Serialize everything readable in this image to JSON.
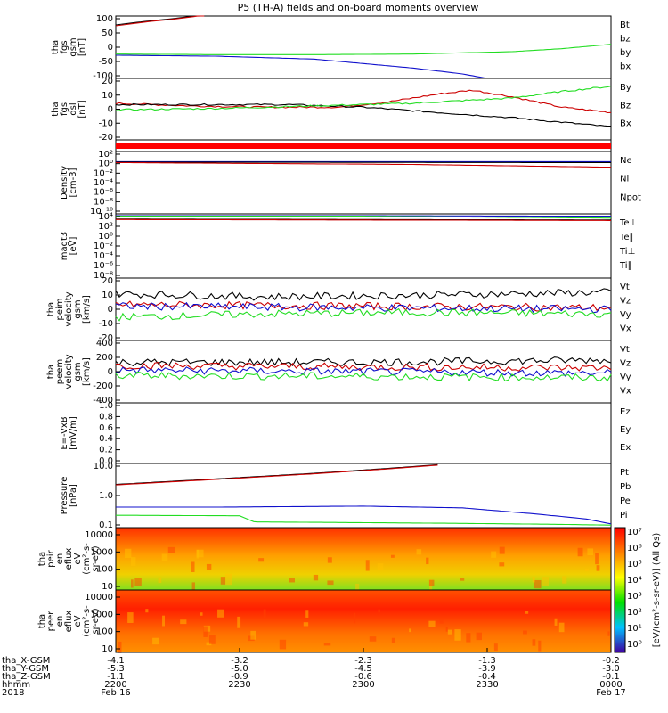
{
  "title": "P5 (TH-A) fields and on-board moments overview",
  "colors": {
    "black": "#000000",
    "red": "#cc0000",
    "green": "#22dd22",
    "blue": "#1010cc"
  },
  "chart_data": [
    {
      "type": "line",
      "id": "fgs_gsm",
      "ylabel": [
        "tha",
        "fgs",
        "gsm",
        "[nT]"
      ],
      "yticks": [
        "100",
        "50",
        "0",
        "-50",
        "-100"
      ],
      "ylim": [
        -100,
        110
      ],
      "legend": [
        {
          "name": "Bt",
          "color": "black"
        },
        {
          "name": "bz",
          "color": "red"
        },
        {
          "name": "by",
          "color": "green"
        },
        {
          "name": "bx",
          "color": "blue"
        }
      ],
      "series": [
        {
          "name": "Bt",
          "color": "black",
          "x": [
            0,
            0.06,
            0.12,
            0.18
          ],
          "y": [
            80,
            92,
            102,
            115
          ]
        },
        {
          "name": "bz",
          "color": "red",
          "x": [
            0,
            0.06,
            0.12,
            0.18
          ],
          "y": [
            77,
            90,
            100,
            113
          ]
        },
        {
          "name": "by",
          "color": "green",
          "x": [
            0,
            0.2,
            0.4,
            0.6,
            0.8,
            0.9,
            1.0
          ],
          "y": [
            -18,
            -20,
            -20,
            -18,
            -10,
            0,
            15
          ]
        },
        {
          "name": "bx",
          "color": "blue",
          "x": [
            0,
            0.2,
            0.4,
            0.5,
            0.6,
            0.7,
            0.75
          ],
          "y": [
            -22,
            -25,
            -35,
            -50,
            -65,
            -85,
            -100
          ]
        }
      ]
    },
    {
      "type": "line",
      "id": "fgs_dsl",
      "ylabel": [
        "tha",
        "fgs",
        "dsl",
        "[nT]"
      ],
      "yticks": [
        "20",
        "10",
        "0",
        "-10",
        "-20"
      ],
      "ylim": [
        -25,
        22
      ],
      "legend": [
        {
          "name": "By",
          "color": "green"
        },
        {
          "name": "Bz",
          "color": "red"
        },
        {
          "name": "Bx",
          "color": "black"
        }
      ],
      "series": [
        {
          "name": "Bz",
          "color": "red",
          "x": [
            0,
            0.15,
            0.3,
            0.45,
            0.55,
            0.65,
            0.72,
            0.8,
            0.9,
            1.0
          ],
          "y": [
            3,
            1,
            0,
            0,
            4,
            10,
            13,
            8,
            0,
            -4
          ]
        },
        {
          "name": "Bx",
          "color": "black",
          "x": [
            0,
            0.2,
            0.35,
            0.5,
            0.65,
            0.8,
            1.0
          ],
          "y": [
            2,
            2,
            2,
            0,
            -4,
            -8,
            -15
          ]
        },
        {
          "name": "By",
          "color": "green",
          "x": [
            0,
            0.2,
            0.4,
            0.6,
            0.8,
            0.9,
            1.0
          ],
          "y": [
            -2,
            -1,
            1,
            3,
            7,
            12,
            16
          ]
        }
      ]
    },
    {
      "type": "line",
      "id": "density",
      "ylabel": [
        "Density",
        "[cm-3]"
      ],
      "yticks": [
        "10²",
        "10⁰",
        "10⁻²",
        "10⁻⁴",
        "10⁻⁶",
        "10⁻⁸",
        "10⁻¹⁰"
      ],
      "ylim": [
        -11,
        2.5
      ],
      "log": true,
      "legend": [
        {
          "name": "Ne",
          "color": "red"
        },
        {
          "name": "Ni",
          "color": "black"
        },
        {
          "name": "Npot",
          "color": "blue"
        }
      ],
      "series": [
        {
          "name": "Npot",
          "color": "blue",
          "x": [
            0,
            0.5,
            1.0
          ],
          "y": [
            0.3,
            0.3,
            0.3
          ]
        },
        {
          "name": "Ni",
          "color": "black",
          "x": [
            0,
            0.5,
            1.0
          ],
          "y": [
            0.2,
            0.15,
            0.1
          ]
        },
        {
          "name": "Ne",
          "color": "red",
          "x": [
            0,
            0.3,
            0.6,
            0.8,
            1.0
          ],
          "y": [
            0.1,
            -0.1,
            -0.3,
            -0.6,
            -0.9
          ]
        }
      ]
    },
    {
      "type": "line",
      "id": "temperature",
      "ylabel": [
        "magt3",
        "[eV]"
      ],
      "yticks": [
        "10⁴",
        "10²",
        "10⁰",
        "10⁻²",
        "10⁻⁴",
        "10⁻⁶",
        "10⁻⁸"
      ],
      "ylim": [
        -9.5,
        4.2
      ],
      "log": true,
      "legend": [
        {
          "name": "Te⊥",
          "color": "red"
        },
        {
          "name": "Te∥",
          "color": "black"
        },
        {
          "name": "Ti⊥",
          "color": "blue"
        },
        {
          "name": "Ti∥",
          "color": "green"
        }
      ],
      "series": [
        {
          "name": "Ti⊥",
          "color": "blue",
          "x": [
            0,
            0.5,
            1.0
          ],
          "y": [
            3.8,
            3.8,
            3.7
          ]
        },
        {
          "name": "Ti∥",
          "color": "green",
          "x": [
            0,
            0.5,
            1.0
          ],
          "y": [
            3.7,
            3.7,
            3.3
          ]
        },
        {
          "name": "Te∥",
          "color": "black",
          "x": [
            0,
            0.5,
            1.0
          ],
          "y": [
            3.1,
            3.0,
            2.9
          ]
        },
        {
          "name": "Te⊥",
          "color": "red",
          "x": [
            0,
            0.5,
            1.0
          ],
          "y": [
            3.0,
            2.9,
            2.8
          ]
        }
      ]
    },
    {
      "type": "line",
      "id": "peim_velocity",
      "ylabel": [
        "tha",
        "peim",
        "velocity",
        "gsm",
        "[km/s]"
      ],
      "yticks": [
        "20",
        "10",
        "0",
        "-10",
        "-20"
      ],
      "ylim": [
        -20,
        20
      ],
      "legend": [
        {
          "name": "Vt",
          "color": "black"
        },
        {
          "name": "Vz",
          "color": "red"
        },
        {
          "name": "Vy",
          "color": "green"
        },
        {
          "name": "Vx",
          "color": "blue"
        }
      ],
      "series": [
        {
          "name": "Vt",
          "color": "black",
          "x": [
            0,
            0.3,
            0.6,
            1.0
          ],
          "y": [
            10,
            8,
            9,
            11
          ]
        },
        {
          "name": "Vz",
          "color": "red",
          "x": [
            0,
            0.5,
            1.0
          ],
          "y": [
            3,
            2,
            1
          ]
        },
        {
          "name": "Vx",
          "color": "blue",
          "x": [
            0,
            0.5,
            1.0
          ],
          "y": [
            2,
            1,
            0
          ]
        },
        {
          "name": "Vy",
          "color": "green",
          "x": [
            0,
            0.3,
            0.6,
            1.0
          ],
          "y": [
            -5,
            -3,
            -2,
            -3
          ]
        }
      ]
    },
    {
      "type": "line",
      "id": "peem_velocity",
      "ylabel": [
        "tha",
        "peem",
        "velocity",
        "gsm",
        "[km/s]"
      ],
      "yticks": [
        "400",
        "200",
        "0",
        "-200",
        "-400"
      ],
      "ylim": [
        -400,
        400
      ],
      "legend": [
        {
          "name": "Vt",
          "color": "black"
        },
        {
          "name": "Vz",
          "color": "red"
        },
        {
          "name": "Vy",
          "color": "green"
        },
        {
          "name": "Vx",
          "color": "blue"
        }
      ],
      "series": [
        {
          "name": "Vt",
          "color": "black",
          "x": [
            0,
            0.5,
            1.0
          ],
          "y": [
            120,
            120,
            150
          ]
        },
        {
          "name": "Vz",
          "color": "red",
          "x": [
            0,
            0.5,
            1.0
          ],
          "y": [
            80,
            60,
            50
          ]
        },
        {
          "name": "Vx",
          "color": "blue",
          "x": [
            0,
            0.5,
            1.0
          ],
          "y": [
            20,
            0,
            -20
          ]
        },
        {
          "name": "Vy",
          "color": "green",
          "x": [
            0,
            0.5,
            1.0
          ],
          "y": [
            -50,
            -60,
            -80
          ]
        }
      ]
    },
    {
      "type": "line",
      "id": "efield",
      "ylabel": [
        "E=-VxB",
        "[mV/m]"
      ],
      "yticks": [
        "1.0",
        "0.8",
        "0.6",
        "0.4",
        "0.2",
        "0.0"
      ],
      "ylim": [
        0,
        1
      ],
      "legend": [
        {
          "name": "Ez",
          "color": "red"
        },
        {
          "name": "Ey",
          "color": "green"
        },
        {
          "name": "Ex",
          "color": "blue"
        }
      ],
      "series": []
    },
    {
      "type": "line",
      "id": "pressure",
      "ylabel": [
        "Pressure",
        "[nPa]"
      ],
      "yticks": [
        "10.0",
        "1.0",
        "0.1"
      ],
      "ylim": [
        -1.25,
        1.35
      ],
      "log": true,
      "legend": [
        {
          "name": "Pt",
          "color": "black"
        },
        {
          "name": "Pb",
          "color": "red"
        },
        {
          "name": "Pe",
          "color": "green"
        },
        {
          "name": "Pi",
          "color": "blue"
        }
      ],
      "series": [
        {
          "name": "Pt",
          "color": "black",
          "x": [
            0,
            0.2,
            0.4,
            0.55,
            0.65
          ],
          "y": [
            0.5,
            0.72,
            0.95,
            1.15,
            1.3
          ]
        },
        {
          "name": "Pb",
          "color": "red",
          "x": [
            0,
            0.2,
            0.4,
            0.55,
            0.65
          ],
          "y": [
            0.48,
            0.7,
            0.93,
            1.13,
            1.28
          ]
        },
        {
          "name": "Pi",
          "color": "blue",
          "x": [
            0,
            0.2,
            0.5,
            0.7,
            0.85,
            0.95,
            1.0
          ],
          "y": [
            -0.42,
            -0.42,
            -0.38,
            -0.45,
            -0.7,
            -0.9,
            -1.1
          ]
        },
        {
          "name": "Pe",
          "color": "green",
          "x": [
            0,
            0.25,
            0.28,
            0.5,
            0.7,
            0.9,
            1.0
          ],
          "y": [
            -0.75,
            -0.77,
            -1.02,
            -1.05,
            -1.08,
            -1.12,
            -1.15
          ]
        }
      ]
    },
    {
      "type": "heatmap",
      "id": "peir_eflux",
      "ylabel": [
        "tha",
        "peir",
        "en",
        "eflux",
        "eV",
        "(cm²-s-",
        "sr-eV)"
      ],
      "yticks": [
        "10000",
        "1000",
        "100",
        "10"
      ]
    },
    {
      "type": "heatmap",
      "id": "peer_eflux",
      "ylabel": [
        "tha",
        "peer",
        "en",
        "eflux",
        "eV",
        "(cm²-s-",
        "sr-eV)"
      ],
      "yticks": [
        "10000",
        "1000",
        "100",
        "10"
      ]
    }
  ],
  "colorbar": {
    "label": "[eV/(cm²-s-sr-eV)] (All Qs)",
    "ticks": [
      "10⁷",
      "10⁶",
      "10⁵",
      "10⁴",
      "10³",
      "10²",
      "10¹",
      "10⁰"
    ]
  },
  "xaxis": {
    "row_labels": [
      "tha_X-GSM",
      "tha_Y-GSM",
      "tha_Z-GSM",
      "hhmm",
      "2018"
    ],
    "columns": [
      {
        "values": [
          "-4.1",
          "-5.3",
          "-1.1",
          "2200",
          "Feb 16"
        ]
      },
      {
        "values": [
          "-3.2",
          "-5.0",
          "-0.9",
          "2230",
          ""
        ]
      },
      {
        "values": [
          "-2.3",
          "-4.5",
          "-0.6",
          "2300",
          ""
        ]
      },
      {
        "values": [
          "-1.3",
          "-3.9",
          "-0.4",
          "2330",
          ""
        ]
      },
      {
        "values": [
          "-0.2",
          "-3.0",
          "-0.1",
          "0000",
          "Feb 17"
        ]
      }
    ]
  }
}
